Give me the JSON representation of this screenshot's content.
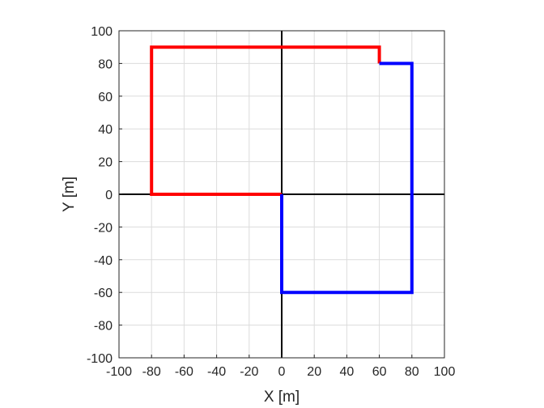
{
  "chart_data": {
    "type": "line",
    "xlabel": "X  [m]",
    "ylabel": "Y  [m]",
    "xlim": [
      -100,
      100
    ],
    "ylim": [
      -100,
      100
    ],
    "xticks": [
      -100,
      -80,
      -60,
      -40,
      -20,
      0,
      20,
      40,
      60,
      80,
      100
    ],
    "yticks": [
      -100,
      -80,
      -60,
      -40,
      -20,
      0,
      20,
      40,
      60,
      80,
      100
    ],
    "grid": true,
    "axis_lines_through_origin": true,
    "series": [
      {
        "color": "#ff0000",
        "points": [
          [
            0,
            0
          ],
          [
            -80,
            0
          ],
          [
            -80,
            90
          ],
          [
            60,
            90
          ],
          [
            60,
            80
          ]
        ]
      },
      {
        "color": "#0000ff",
        "points": [
          [
            60,
            80
          ],
          [
            80,
            80
          ],
          [
            80,
            -60
          ],
          [
            0,
            -60
          ],
          [
            0,
            0
          ]
        ]
      }
    ]
  }
}
